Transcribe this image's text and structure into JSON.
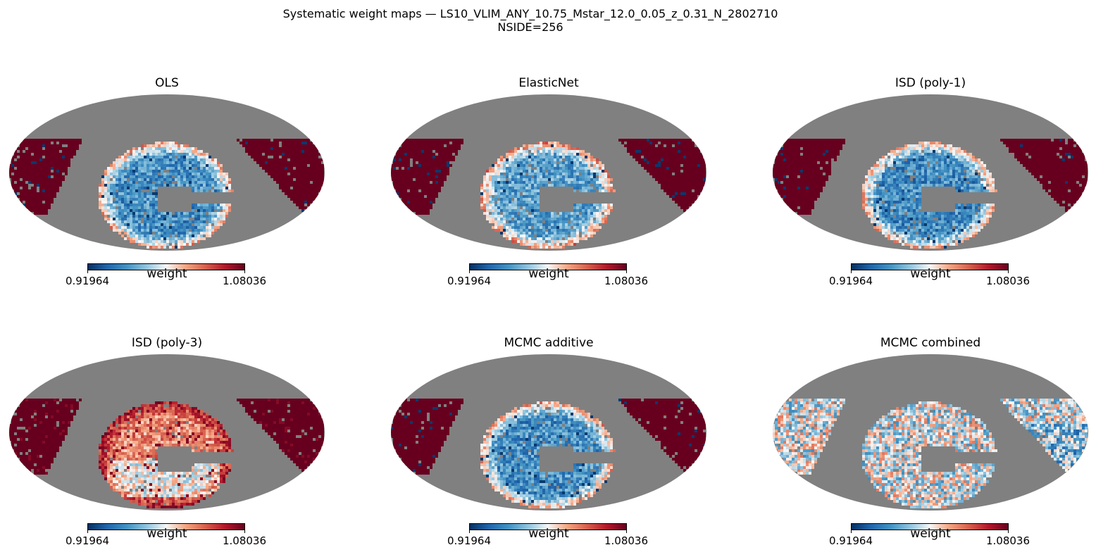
{
  "title_line1": "Systematic weight maps — LS10_VLIM_ANY_10.75_Mstar_12.0_0.05_z_0.31_N_2802710",
  "title_line2": "NSIDE=256",
  "chart_data": {
    "type": "heatmap",
    "projection": "mollweide",
    "colormap": "RdBu_r",
    "mask_color": "#808080",
    "layout": "2x3 grid",
    "colorbar_label": "weight",
    "vmin": 0.91964,
    "vmax": 1.08036,
    "vmin_label": "0.91964",
    "vmax_label": "1.08036",
    "panels": [
      {
        "title": "OLS",
        "pattern": "mostly-low",
        "mean_level": 0.32
      },
      {
        "title": "ElasticNet",
        "pattern": "mostly-low",
        "mean_level": 0.36
      },
      {
        "title": "ISD (poly-1)",
        "pattern": "mostly-low",
        "mean_level": 0.31
      },
      {
        "title": "ISD (poly-3)",
        "pattern": "mostly-high",
        "mean_level": 0.68
      },
      {
        "title": "MCMC additive",
        "pattern": "mostly-low",
        "mean_level": 0.32
      },
      {
        "title": "MCMC combined",
        "pattern": "near-unity",
        "mean_level": 0.47
      }
    ]
  }
}
